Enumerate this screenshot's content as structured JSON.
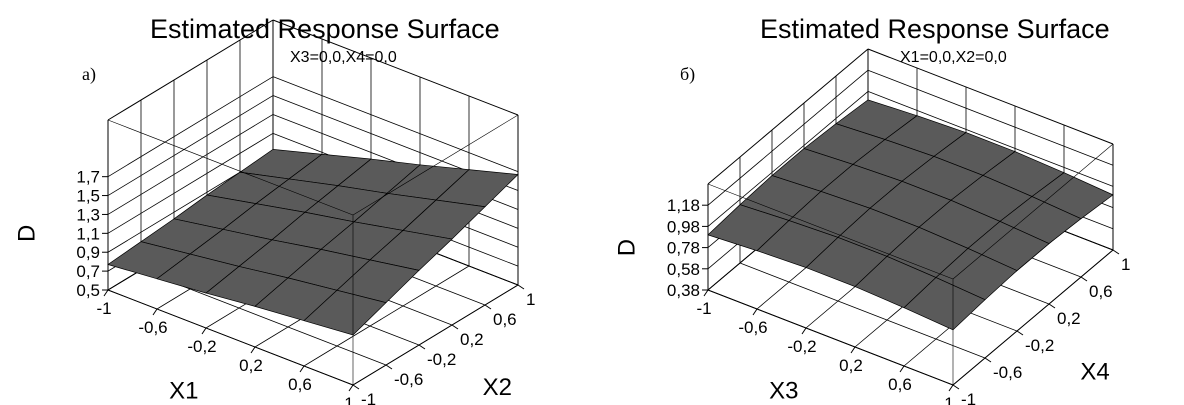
{
  "chart_data": [
    {
      "type": "surface",
      "title": "Estimated Response Surface",
      "subtitle": "X3=0,0,X4=0,0",
      "annotation": "а)",
      "x_label": "X1",
      "y_label": "X2",
      "z_label": "D",
      "color": "#5a5a5a",
      "x": [
        -1,
        -0.6,
        -0.2,
        0.2,
        0.6,
        1
      ],
      "y": [
        -1,
        -0.6,
        -0.2,
        0.2,
        0.6,
        1
      ],
      "z": [
        [
          0.77,
          0.82,
          0.87,
          0.93,
          0.98,
          1.03
        ],
        [
          0.8,
          0.87,
          0.94,
          1.02,
          1.09,
          1.16
        ],
        [
          0.83,
          0.92,
          1.01,
          1.11,
          1.2,
          1.29
        ],
        [
          0.87,
          0.98,
          1.09,
          1.19,
          1.3,
          1.41
        ],
        [
          0.9,
          1.03,
          1.16,
          1.28,
          1.41,
          1.54
        ],
        [
          0.93,
          1.08,
          1.23,
          1.37,
          1.52,
          1.67
        ]
      ],
      "xlim": [
        -1,
        1
      ],
      "ylim": [
        -1,
        1
      ],
      "zlim": [
        0.5,
        2.3
      ],
      "xticks": [
        -1,
        {
          "value": -0.6,
          "label": "-0,6"
        },
        {
          "value": -0.2,
          "label": "-0,2"
        },
        {
          "value": 0.2,
          "label": "0,2"
        },
        {
          "value": 0.6,
          "label": "0,6"
        },
        1
      ],
      "yticks": [
        -1,
        {
          "value": -0.6,
          "label": "-0,6"
        },
        {
          "value": -0.2,
          "label": "-0,2"
        },
        {
          "value": 0.2,
          "label": "0,2"
        },
        {
          "value": 0.6,
          "label": "0,6"
        },
        1
      ],
      "zticks": [
        {
          "value": 0.5,
          "label": "0,5"
        },
        {
          "value": 0.7,
          "label": "0,7"
        },
        {
          "value": 0.9,
          "label": "0,9"
        },
        {
          "value": 1.1,
          "label": "1,1"
        },
        {
          "value": 1.3,
          "label": "1,3"
        },
        {
          "value": 1.5,
          "label": "1,5"
        },
        {
          "value": 1.7,
          "label": "1,7"
        }
      ],
      "grid": true
    },
    {
      "type": "surface",
      "title": "Estimated Response Surface",
      "subtitle": "X1=0,0,X2=0,0",
      "annotation": "б)",
      "x_label": "X3",
      "y_label": "X4",
      "z_label": "D",
      "color": "#5a5a5a",
      "x": [
        -1,
        -0.6,
        -0.2,
        0.2,
        0.6,
        1
      ],
      "y": [
        -1,
        -0.6,
        -0.2,
        0.2,
        0.6,
        1
      ],
      "z": [
        [
          0.9,
          0.93,
          0.95,
          0.95,
          0.93,
          0.9
        ],
        [
          0.93,
          0.96,
          0.98,
          0.98,
          0.96,
          0.93
        ],
        [
          0.95,
          0.98,
          1.0,
          1.0,
          0.98,
          0.95
        ],
        [
          0.95,
          0.98,
          1.0,
          1.0,
          0.98,
          0.95
        ],
        [
          0.93,
          0.96,
          0.98,
          0.98,
          0.96,
          0.93
        ],
        [
          0.9,
          0.93,
          0.95,
          0.95,
          0.93,
          0.9
        ]
      ],
      "xlim": [
        -1,
        1
      ],
      "ylim": [
        -1,
        1
      ],
      "zlim": [
        0.38,
        1.38
      ],
      "xticks": [
        -1,
        {
          "value": -0.6,
          "label": "-0,6"
        },
        {
          "value": -0.2,
          "label": "-0,2"
        },
        {
          "value": 0.2,
          "label": "0,2"
        },
        {
          "value": 0.6,
          "label": "0,6"
        },
        1
      ],
      "yticks": [
        -1,
        {
          "value": -0.6,
          "label": "-0,6"
        },
        {
          "value": -0.2,
          "label": "-0,2"
        },
        {
          "value": 0.2,
          "label": "0,2"
        },
        {
          "value": 0.6,
          "label": "0,6"
        },
        1
      ],
      "zticks": [
        {
          "value": 0.38,
          "label": "0,38"
        },
        {
          "value": 0.58,
          "label": "0,58"
        },
        {
          "value": 0.78,
          "label": "0,78"
        },
        {
          "value": 0.98,
          "label": "0,98"
        },
        {
          "value": 1.18,
          "label": "1,18"
        }
      ],
      "grid": true
    }
  ]
}
